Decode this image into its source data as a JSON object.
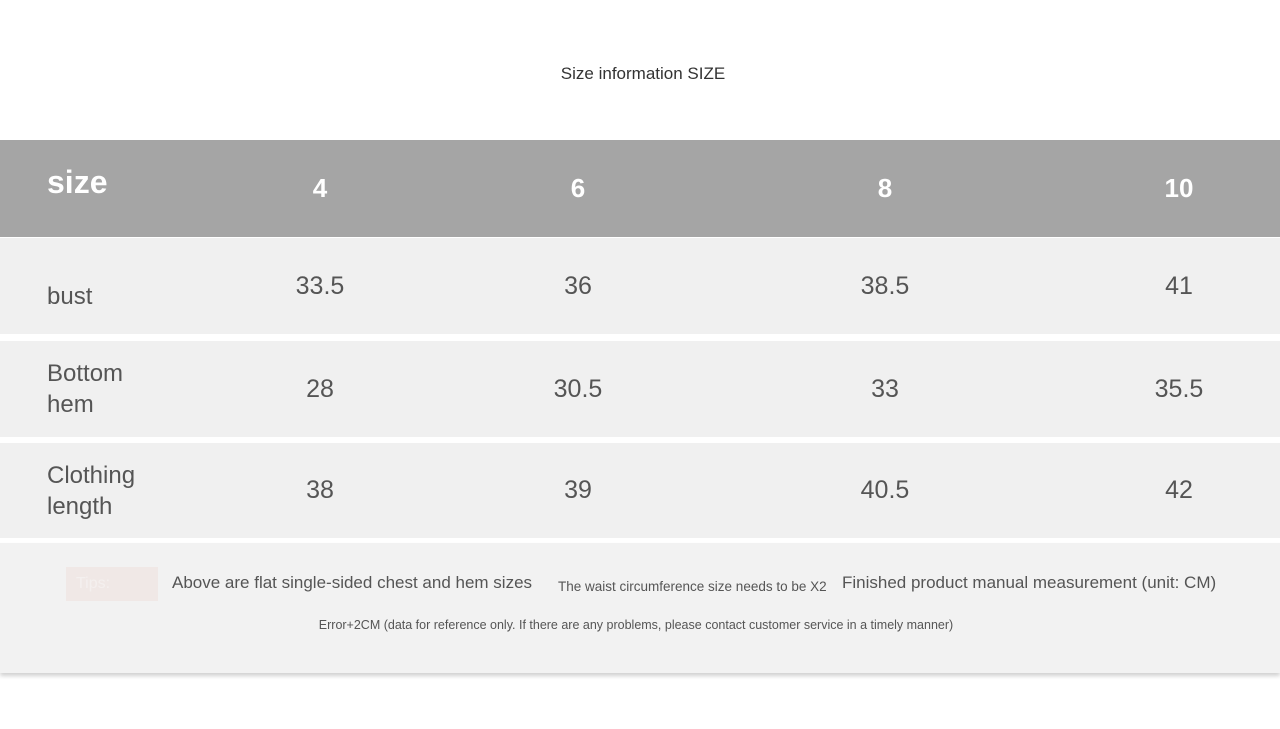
{
  "title": "Size information SIZE",
  "table": {
    "header": {
      "label": "size",
      "sizes": [
        "4",
        "6",
        "8",
        "10"
      ]
    },
    "rows": [
      {
        "label": "bust",
        "values": [
          "33.5",
          "36",
          "38.5",
          "41"
        ]
      },
      {
        "label": "Bottom hem",
        "values": [
          "28",
          "30.5",
          "33",
          "35.5"
        ]
      },
      {
        "label": "Clothing length",
        "values": [
          "38",
          "39",
          "40.5",
          "42"
        ]
      }
    ]
  },
  "tips": {
    "badge": "Tips:",
    "line1": "Above are flat single-sided chest and hem sizes",
    "line2": "The waist circumference size needs to be X2",
    "line3": "Finished product manual measurement (unit: CM)",
    "line4": "Error+2CM (data for reference only. If there are any problems, please contact customer service in a timely manner)"
  },
  "colors": {
    "header_bg": "#a5a5a5",
    "row_bg": "#f0f0f0",
    "text": "#555555"
  }
}
